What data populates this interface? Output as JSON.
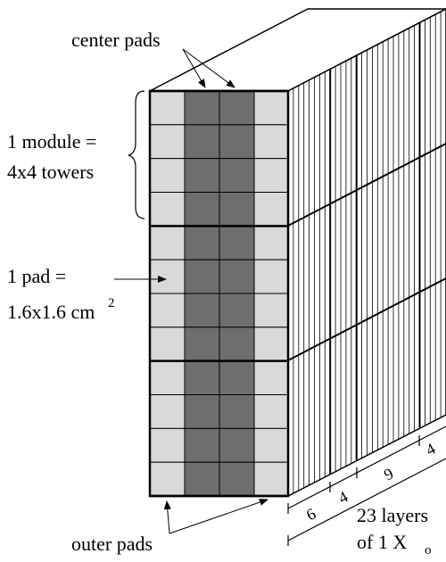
{
  "labels": {
    "center_pads": "center pads",
    "module_line1": "1 module =",
    "module_line2": "4x4 towers",
    "pad_line1": "1 pad =",
    "pad_line2": "1.6x1.6 cm",
    "pad_superscript": "2",
    "outer_pads": "outer pads",
    "layer_groups": [
      "6",
      "4",
      "9",
      "4"
    ],
    "layers_line1": "23 layers",
    "layers_line2": "of 1 X",
    "layers_subscript": "o"
  }
}
